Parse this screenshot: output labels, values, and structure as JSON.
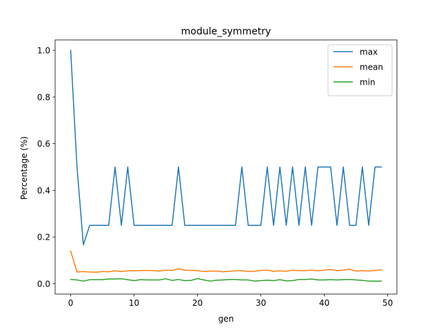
{
  "chart_data": {
    "type": "line",
    "title": "module_symmetry",
    "xlabel": "gen",
    "ylabel": "Percentage (%)",
    "xlim": [
      -2.45,
      51.45
    ],
    "ylim": [
      -0.0445,
      1.0445
    ],
    "xticks": [
      0,
      10,
      20,
      30,
      40,
      50
    ],
    "xtick_labels": [
      "0",
      "10",
      "20",
      "30",
      "40",
      "50"
    ],
    "yticks": [
      0.0,
      0.2,
      0.4,
      0.6,
      0.8,
      1.0
    ],
    "ytick_labels": [
      "0.0",
      "0.2",
      "0.4",
      "0.6",
      "0.8",
      "1.0"
    ],
    "grid": false,
    "legend_position": "top-right",
    "x": [
      0,
      1,
      2,
      3,
      4,
      5,
      6,
      7,
      8,
      9,
      10,
      11,
      12,
      13,
      14,
      15,
      16,
      17,
      18,
      19,
      20,
      21,
      22,
      23,
      24,
      25,
      26,
      27,
      28,
      29,
      30,
      31,
      32,
      33,
      34,
      35,
      36,
      37,
      38,
      39,
      40,
      41,
      42,
      43,
      44,
      45,
      46,
      47,
      48,
      49
    ],
    "series": [
      {
        "name": "max",
        "color": "#1f77b4",
        "values": [
          1.0,
          0.5,
          0.167,
          0.25,
          0.25,
          0.25,
          0.25,
          0.5,
          0.25,
          0.5,
          0.25,
          0.25,
          0.25,
          0.25,
          0.25,
          0.25,
          0.25,
          0.5,
          0.25,
          0.25,
          0.25,
          0.25,
          0.25,
          0.25,
          0.25,
          0.25,
          0.25,
          0.5,
          0.25,
          0.25,
          0.25,
          0.5,
          0.25,
          0.5,
          0.25,
          0.5,
          0.25,
          0.5,
          0.25,
          0.5,
          0.5,
          0.5,
          0.25,
          0.5,
          0.25,
          0.25,
          0.5,
          0.25,
          0.5,
          0.5
        ]
      },
      {
        "name": "mean",
        "color": "#ff7f0e",
        "values": [
          0.14,
          0.05,
          0.052,
          0.05,
          0.049,
          0.052,
          0.051,
          0.055,
          0.052,
          0.055,
          0.055,
          0.056,
          0.057,
          0.056,
          0.054,
          0.058,
          0.057,
          0.064,
          0.058,
          0.057,
          0.056,
          0.052,
          0.054,
          0.054,
          0.051,
          0.053,
          0.055,
          0.056,
          0.052,
          0.053,
          0.057,
          0.058,
          0.053,
          0.055,
          0.053,
          0.058,
          0.056,
          0.056,
          0.058,
          0.055,
          0.058,
          0.061,
          0.056,
          0.058,
          0.062,
          0.054,
          0.056,
          0.054,
          0.057,
          0.059
        ]
      },
      {
        "name": "min",
        "color": "#2ca02c",
        "values": [
          0.018,
          0.016,
          0.011,
          0.017,
          0.017,
          0.017,
          0.02,
          0.02,
          0.021,
          0.017,
          0.013,
          0.017,
          0.016,
          0.016,
          0.016,
          0.021,
          0.014,
          0.018,
          0.013,
          0.014,
          0.022,
          0.016,
          0.011,
          0.015,
          0.016,
          0.018,
          0.018,
          0.016,
          0.016,
          0.011,
          0.013,
          0.015,
          0.013,
          0.017,
          0.012,
          0.013,
          0.018,
          0.018,
          0.02,
          0.016,
          0.016,
          0.017,
          0.016,
          0.017,
          0.018,
          0.016,
          0.014,
          0.011,
          0.011,
          0.011
        ]
      }
    ]
  }
}
